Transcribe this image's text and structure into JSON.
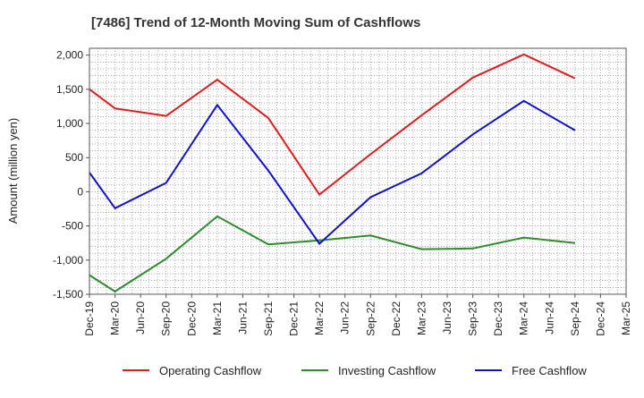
{
  "chart_data": {
    "type": "line",
    "title": "[7486]  Trend of 12-Month Moving Sum of Cashflows",
    "ylabel": "Amount (million yen)",
    "xlabel": "",
    "ylim": [
      -1500,
      2100
    ],
    "y_ticks": [
      2000,
      1500,
      1000,
      500,
      0,
      -500,
      -1000,
      -1500
    ],
    "y_tick_labels": [
      "2,000",
      "1,500",
      "1,000",
      "500",
      "0",
      "-500",
      "-1,000",
      "-1,500"
    ],
    "categories": [
      "Dec-19",
      "Mar-20",
      "Jun-20",
      "Sep-20",
      "Dec-20",
      "Mar-21",
      "Jun-21",
      "Sep-21",
      "Dec-21",
      "Mar-22",
      "Jun-22",
      "Sep-22",
      "Dec-22",
      "Mar-23",
      "Jun-23",
      "Sep-23",
      "Dec-23",
      "Mar-24",
      "Jun-24",
      "Sep-24",
      "Dec-24",
      "Mar-25"
    ],
    "x_tick_labels": [
      "Dec-19",
      "Mar-20",
      "Jun-20",
      "Sep-20",
      "Dec-20",
      "Mar-21",
      "Jun-21",
      "Sep-21",
      "Dec-21",
      "Mar-22",
      "Jun-22",
      "Sep-22",
      "Dec-22",
      "Mar-23",
      "Jun-23",
      "Sep-23",
      "Dec-23",
      "Mar-24",
      "Jun-24",
      "Sep-24",
      "Dec-24",
      "Mar-25"
    ],
    "grid": true,
    "legend_position": "bottom",
    "series": [
      {
        "name": "Operating Cashflow",
        "color": "#e31a1c",
        "x": [
          "Dec-19",
          "Mar-20",
          "Sep-20",
          "Mar-21",
          "Sep-21",
          "Mar-22",
          "Sep-22",
          "Mar-23",
          "Sep-23",
          "Mar-24",
          "Sep-24"
        ],
        "values": [
          1500,
          1220,
          1110,
          1640,
          1080,
          -40,
          550,
          1120,
          1670,
          2010,
          1660
        ]
      },
      {
        "name": "Investing Cashflow",
        "color": "#2e8b2e",
        "x": [
          "Dec-19",
          "Mar-20",
          "Sep-20",
          "Mar-21",
          "Sep-21",
          "Mar-22",
          "Sep-22",
          "Mar-23",
          "Sep-23",
          "Mar-24",
          "Sep-24"
        ],
        "values": [
          -1220,
          -1460,
          -980,
          -360,
          -770,
          -710,
          -640,
          -840,
          -830,
          -670,
          -750
        ]
      },
      {
        "name": "Free Cashflow",
        "color": "#1010d0",
        "x": [
          "Dec-19",
          "Mar-20",
          "Sep-20",
          "Mar-21",
          "Sep-21",
          "Mar-22",
          "Sep-22",
          "Mar-23",
          "Sep-23",
          "Mar-24",
          "Sep-24"
        ],
        "values": [
          280,
          -240,
          130,
          1270,
          310,
          -760,
          -80,
          270,
          840,
          1330,
          900
        ]
      }
    ]
  }
}
